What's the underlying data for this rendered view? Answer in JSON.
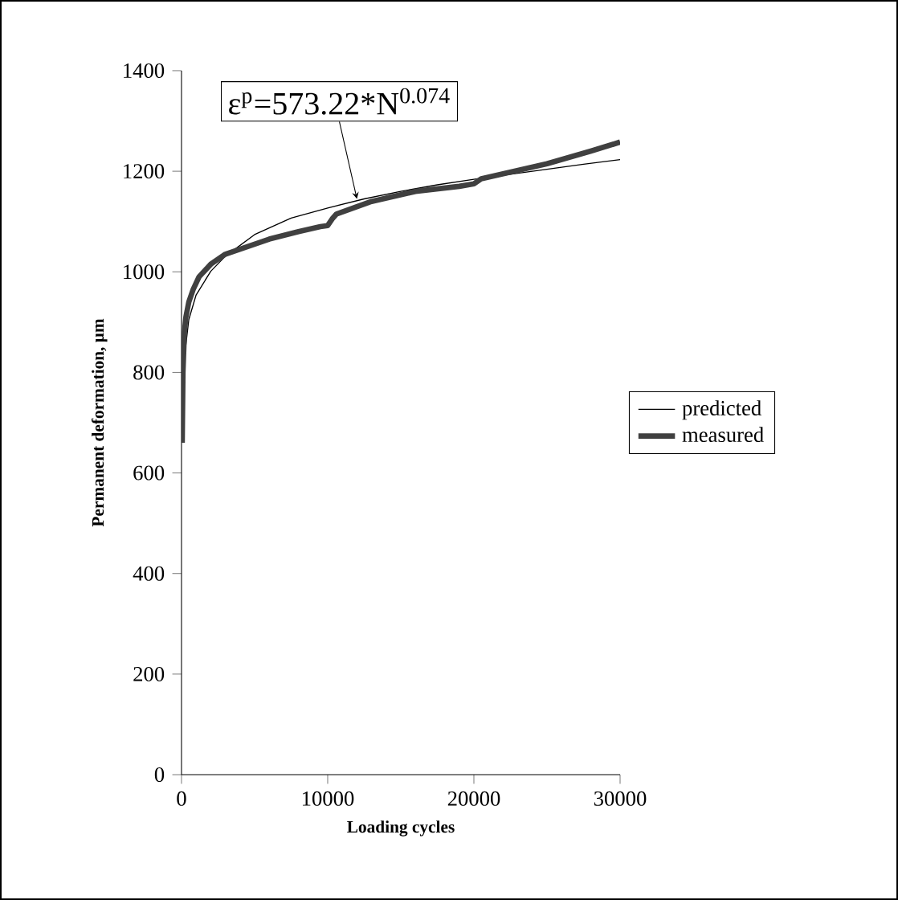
{
  "chart_data": {
    "type": "line",
    "xlabel": "Loading cycles",
    "ylabel": "Permanent deformation, μm",
    "xlim": [
      0,
      30000
    ],
    "xticks": [
      0,
      10000,
      20000,
      30000
    ],
    "ylim": [
      0,
      1400
    ],
    "yticks": [
      0,
      200,
      400,
      600,
      800,
      1000,
      1200,
      1400
    ],
    "legend": "right",
    "marker": "none",
    "grid": false,
    "annotations": [
      {
        "text": "ε$^{p}$=573.22*N$^{0.074}$",
        "x": 12000,
        "y": 1145
      }
    ],
    "series": [
      {
        "name": "predicted",
        "color": "#000000",
        "x": [
          10,
          100,
          500,
          1000,
          2000,
          3000,
          5000,
          7500,
          10000,
          12500,
          15000,
          17500,
          20000,
          22500,
          25000,
          27500,
          30000
        ],
        "values": [
          680,
          805,
          905,
          954,
          1001,
          1031,
          1074,
          1107,
          1127,
          1145,
          1160,
          1173,
          1184,
          1194,
          1204,
          1214,
          1223
        ]
      },
      {
        "name": "measured",
        "color": "#404040",
        "x": [
          50,
          100,
          200,
          300,
          500,
          800,
          1200,
          2000,
          3000,
          4000,
          6000,
          8000,
          9500,
          10000,
          10300,
          10600,
          13000,
          16000,
          19000,
          20000,
          20500,
          22000,
          25000,
          28000,
          30000
        ],
        "values": [
          660,
          800,
          880,
          910,
          940,
          965,
          990,
          1015,
          1035,
          1045,
          1065,
          1080,
          1090,
          1092,
          1105,
          1115,
          1140,
          1160,
          1170,
          1175,
          1185,
          1195,
          1215,
          1240,
          1258
        ]
      }
    ]
  }
}
